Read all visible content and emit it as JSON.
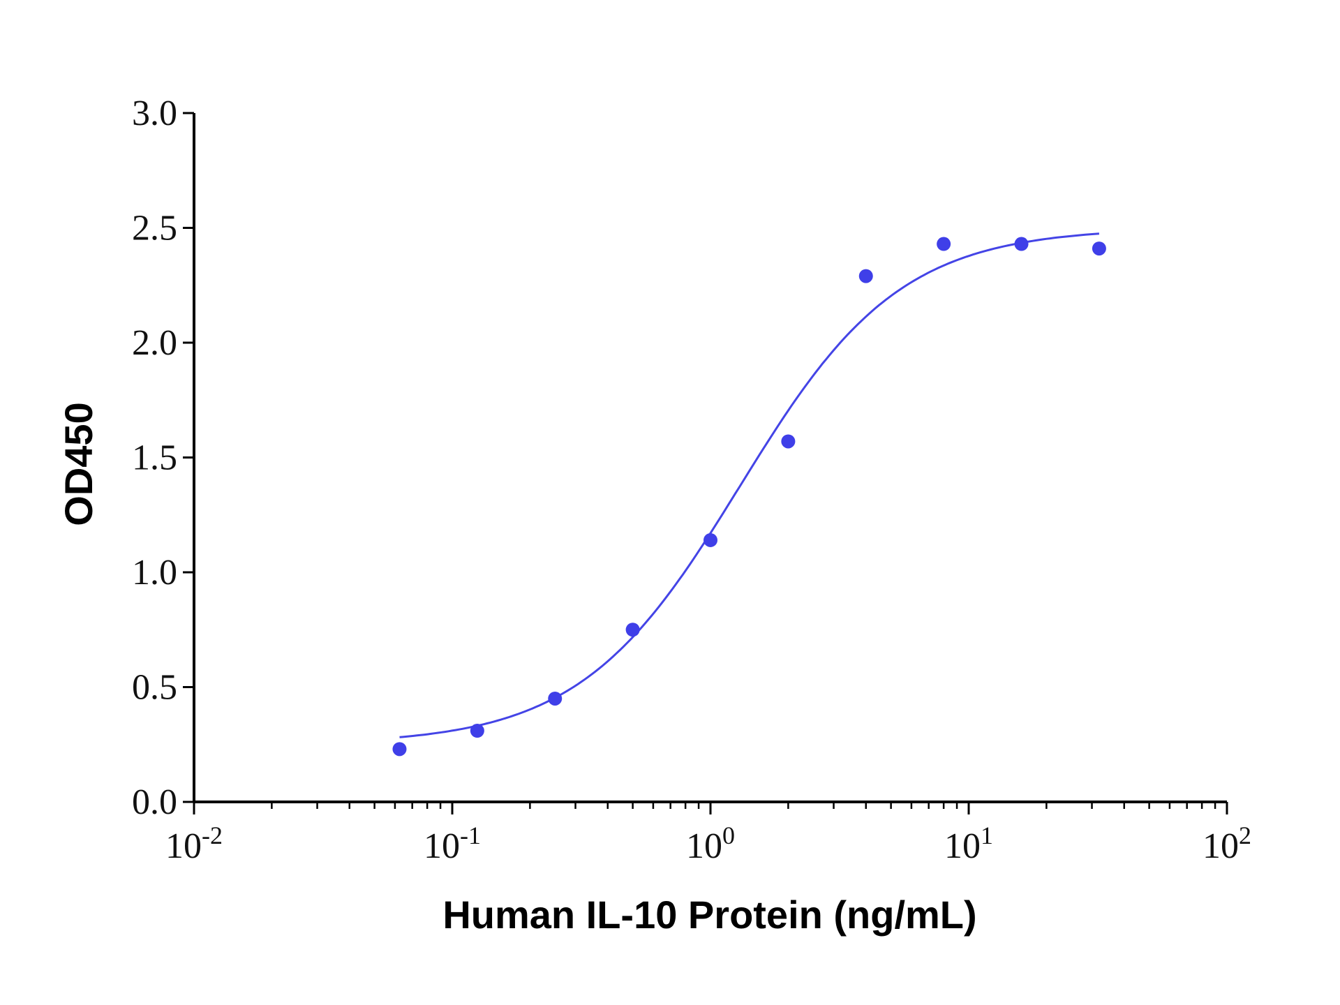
{
  "chart_data": {
    "type": "scatter",
    "xlabel": "Human IL-10 Protein (ng/mL)",
    "ylabel": "OD450",
    "x_scale": "log10",
    "xlim": [
      0.01,
      100
    ],
    "ylim": [
      0,
      3.0
    ],
    "x_ticks": [
      {
        "base": "10",
        "exp": "-2",
        "value": 0.01
      },
      {
        "base": "10",
        "exp": "-1",
        "value": 0.1
      },
      {
        "base": "10",
        "exp": "0",
        "value": 1
      },
      {
        "base": "10",
        "exp": "1",
        "value": 10
      },
      {
        "base": "10",
        "exp": "2",
        "value": 100
      }
    ],
    "y_ticks": [
      "0.0",
      "0.5",
      "1.0",
      "1.5",
      "2.0",
      "2.5",
      "3.0"
    ],
    "grid": false,
    "legend": "none",
    "point_color": "#3f3fe8",
    "line_color": "#4444e6",
    "series": [
      {
        "x": [
          0.0625,
          0.125,
          0.25,
          0.5,
          1,
          2,
          4,
          8,
          16,
          32
        ],
        "y": [
          0.23,
          0.31,
          0.45,
          0.75,
          1.14,
          1.57,
          2.29,
          2.43,
          2.43,
          2.41
        ]
      }
    ],
    "fit_curve": {
      "model": "4PL",
      "bottom": 0.25,
      "top": 2.5,
      "ec50": 1.3,
      "hill": 1.4,
      "x_range": [
        0.0625,
        32
      ]
    }
  }
}
